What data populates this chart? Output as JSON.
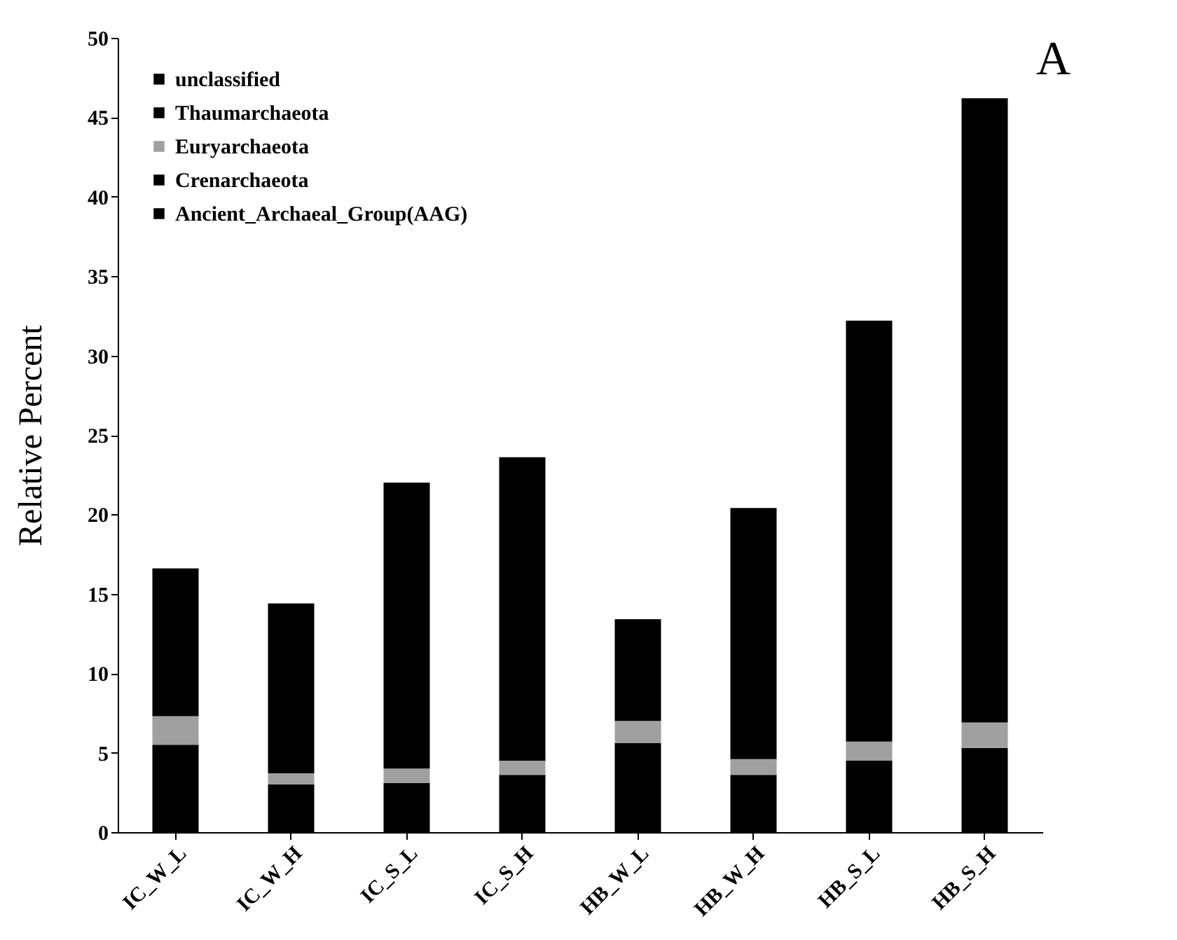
{
  "chart_data": {
    "type": "bar",
    "title": "A",
    "ylabel": "Relative Percent",
    "stacked": true,
    "legend": "top left",
    "grid": false,
    "categories": [
      "IC_W_L",
      "IC_W_H",
      "IC_S_L",
      "IC_S_H",
      "HB_W_L",
      "HB_W_H",
      "HB_S_L",
      "HB_S_H"
    ],
    "series": [
      {
        "name": "Ancient_Archaeal_Group(AAG)",
        "color": "#000000",
        "values": [
          null,
          null,
          null,
          null,
          null,
          null,
          null,
          null
        ]
      },
      {
        "name": "Crenarchaeota",
        "color": "#000000",
        "values": [
          5.5,
          3.0,
          3.1,
          3.6,
          5.6,
          3.6,
          4.5,
          5.3
        ]
      },
      {
        "name": "Euryarchaeota",
        "color": "#a0a0a0",
        "values": [
          1.8,
          0.7,
          0.9,
          0.9,
          1.4,
          1.0,
          1.2,
          1.6
        ]
      },
      {
        "name": "Thaumarchaeota",
        "color": "#000000",
        "values": [
          9.3,
          10.7,
          18.0,
          19.1,
          6.4,
          15.8,
          26.5,
          39.3
        ]
      },
      {
        "name": "unclassified",
        "color": "#000000",
        "values": [
          null,
          null,
          null,
          null,
          null,
          null,
          null,
          null
        ]
      }
    ],
    "ylim": [
      0,
      50
    ],
    "yticks": [
      0,
      5,
      10,
      15,
      20,
      25,
      30,
      35,
      40,
      45,
      50
    ]
  }
}
